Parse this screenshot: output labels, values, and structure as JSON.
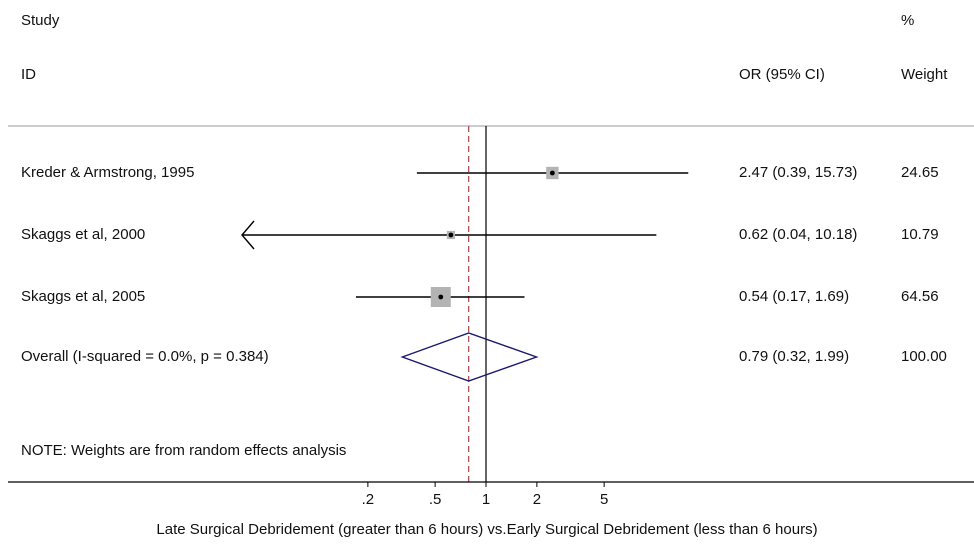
{
  "header": {
    "study": "Study",
    "id": "ID",
    "pct": "%",
    "or_ci": "OR (95% CI)",
    "weight": "Weight"
  },
  "chart_data": {
    "type": "forest",
    "scale": "log",
    "null_value": 1,
    "overall_effect": 0.79,
    "xticks": [
      {
        "value": 0.2,
        "label": ".2"
      },
      {
        "value": 0.5,
        "label": ".5"
      },
      {
        "value": 1,
        "label": "1"
      },
      {
        "value": 2,
        "label": "2"
      },
      {
        "value": 5,
        "label": "5"
      }
    ],
    "xlabel": "Late Surgical Debridement (greater than 6 hours) vs.Early Surgical Debridement (less than 6 hours)",
    "studies": [
      {
        "label": "Kreder & Armstrong, 1995",
        "or": 2.47,
        "lower": 0.39,
        "upper": 15.73,
        "weight": 24.65,
        "ci_text": "2.47 (0.39, 15.73)",
        "weight_text": "24.65",
        "arrow_left": false
      },
      {
        "label": "Skaggs et al, 2000",
        "or": 0.62,
        "lower": 0.04,
        "upper": 10.18,
        "weight": 10.79,
        "ci_text": "0.62 (0.04, 10.18)",
        "weight_text": "10.79",
        "arrow_left": true
      },
      {
        "label": "Skaggs et al, 2005",
        "or": 0.54,
        "lower": 0.17,
        "upper": 1.69,
        "weight": 64.56,
        "ci_text": "0.54 (0.17, 1.69)",
        "weight_text": "64.56",
        "arrow_left": false
      }
    ],
    "overall": {
      "label": "Overall  (I-squared = 0.0%, p = 0.384)",
      "or": 0.79,
      "lower": 0.32,
      "upper": 1.99,
      "ci_text": "0.79 (0.32, 1.99)",
      "weight_text": "100.00"
    },
    "note": "NOTE: Weights are from random effects analysis"
  },
  "colors": {
    "line": "#000000",
    "box": "#b3b3b3",
    "diamond": "#1a1a6e",
    "reference": "#b0404a",
    "rule": "#999999"
  }
}
